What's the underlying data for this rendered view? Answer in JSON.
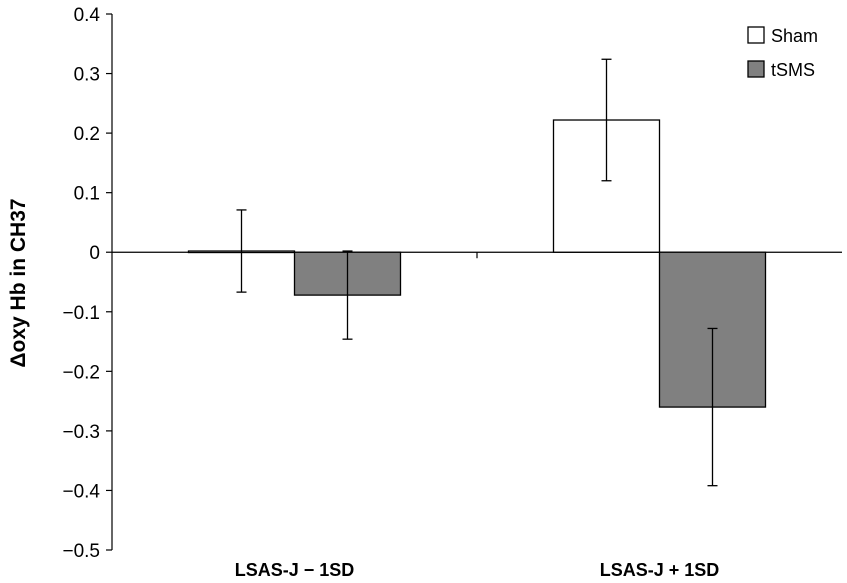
{
  "chart_data": {
    "type": "bar",
    "title": "",
    "xlabel": "",
    "ylabel": "Δoxy Hb in CH37",
    "ylim": [
      -0.5,
      0.4
    ],
    "yticks": [
      {
        "value": 0.4,
        "label": "0.4"
      },
      {
        "value": 0.3,
        "label": "0.3"
      },
      {
        "value": 0.2,
        "label": "0.2"
      },
      {
        "value": 0.1,
        "label": "0.1"
      },
      {
        "value": 0,
        "label": "0"
      },
      {
        "value": -0.1,
        "label": "−0.1"
      },
      {
        "value": -0.2,
        "label": "−0.2"
      },
      {
        "value": -0.3,
        "label": "−0.3"
      },
      {
        "value": -0.4,
        "label": "−0.4"
      },
      {
        "value": -0.5,
        "label": "−0.5"
      }
    ],
    "categories": [
      "LSAS-J − 1SD",
      "LSAS-J + 1SD"
    ],
    "series": [
      {
        "name": "Sham",
        "color": "#ffffff",
        "values": [
          0.002,
          0.222
        ],
        "errors": [
          0.069,
          0.102
        ]
      },
      {
        "name": "tSMS",
        "color": "#808080",
        "values": [
          -0.072,
          -0.26
        ],
        "errors": [
          0.074,
          0.132
        ]
      }
    ],
    "grid": false,
    "legend_position": "top-right"
  }
}
